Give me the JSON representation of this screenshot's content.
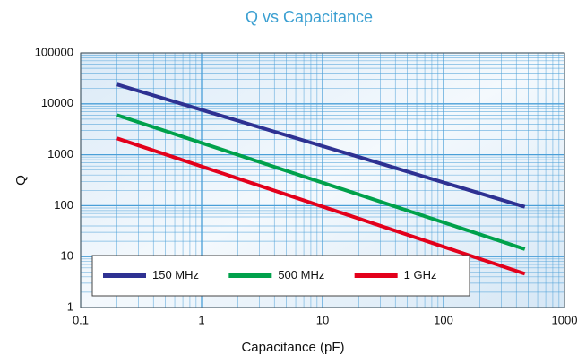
{
  "chart_data": {
    "type": "line",
    "title": "Q vs Capacitance",
    "x_label": "Capacitance (pF)",
    "y_label": "Q",
    "x": [
      0.2,
      470
    ],
    "series": [
      {
        "name": "150 MHz",
        "color": "#2e3192",
        "values": [
          24000,
          95
        ]
      },
      {
        "name": "500 MHz",
        "color": "#00a14b",
        "values": [
          6000,
          14
        ]
      },
      {
        "name": "1 GHz",
        "color": "#e3001b",
        "values": [
          2100,
          4.6
        ]
      }
    ],
    "xlim": [
      0.1,
      1000
    ],
    "xticks": [
      0.1,
      1,
      10,
      100,
      1000
    ],
    "ylim": [
      1,
      100000
    ],
    "yticks": [
      1,
      10,
      100,
      1000,
      10000,
      100000
    ],
    "xscale": "log",
    "yscale": "log",
    "grid": true,
    "minor_grid": true,
    "legend": "lower left"
  }
}
